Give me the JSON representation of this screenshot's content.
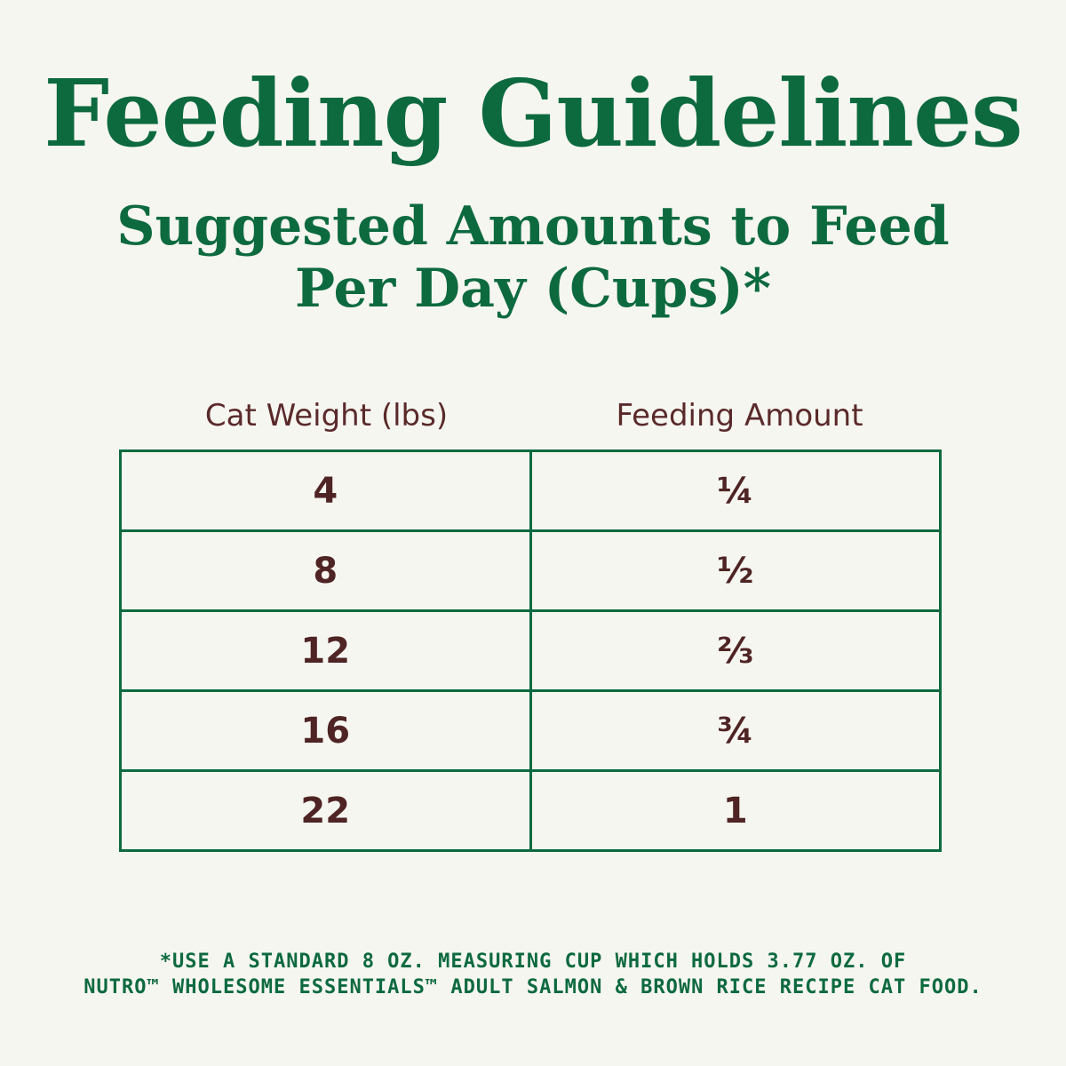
{
  "title": "Feeding Guidelines",
  "subtitle": {
    "line1": "Suggested Amounts to Feed",
    "line2": "Per Day (Cups)*"
  },
  "table": {
    "headers": [
      "Cat Weight (lbs)",
      "Feeding Amount"
    ],
    "rows": [
      {
        "weight": "4",
        "amount": "¼"
      },
      {
        "weight": "8",
        "amount": "½"
      },
      {
        "weight": "12",
        "amount": "⅔"
      },
      {
        "weight": "16",
        "amount": "¾"
      },
      {
        "weight": "22",
        "amount": "1"
      }
    ]
  },
  "footnote": {
    "line1": "*USE A STANDARD 8 OZ. MEASURING CUP WHICH HOLDS 3.77 OZ. OF",
    "line2": "NUTRO™ WHOLESOME ESSENTIALS™ ADULT SALMON & BROWN RICE RECIPE CAT FOOD."
  },
  "colors": {
    "accent_green": "#0d6a3f",
    "text_maroon": "#5a2a2a",
    "background": "#f6f6f1"
  }
}
